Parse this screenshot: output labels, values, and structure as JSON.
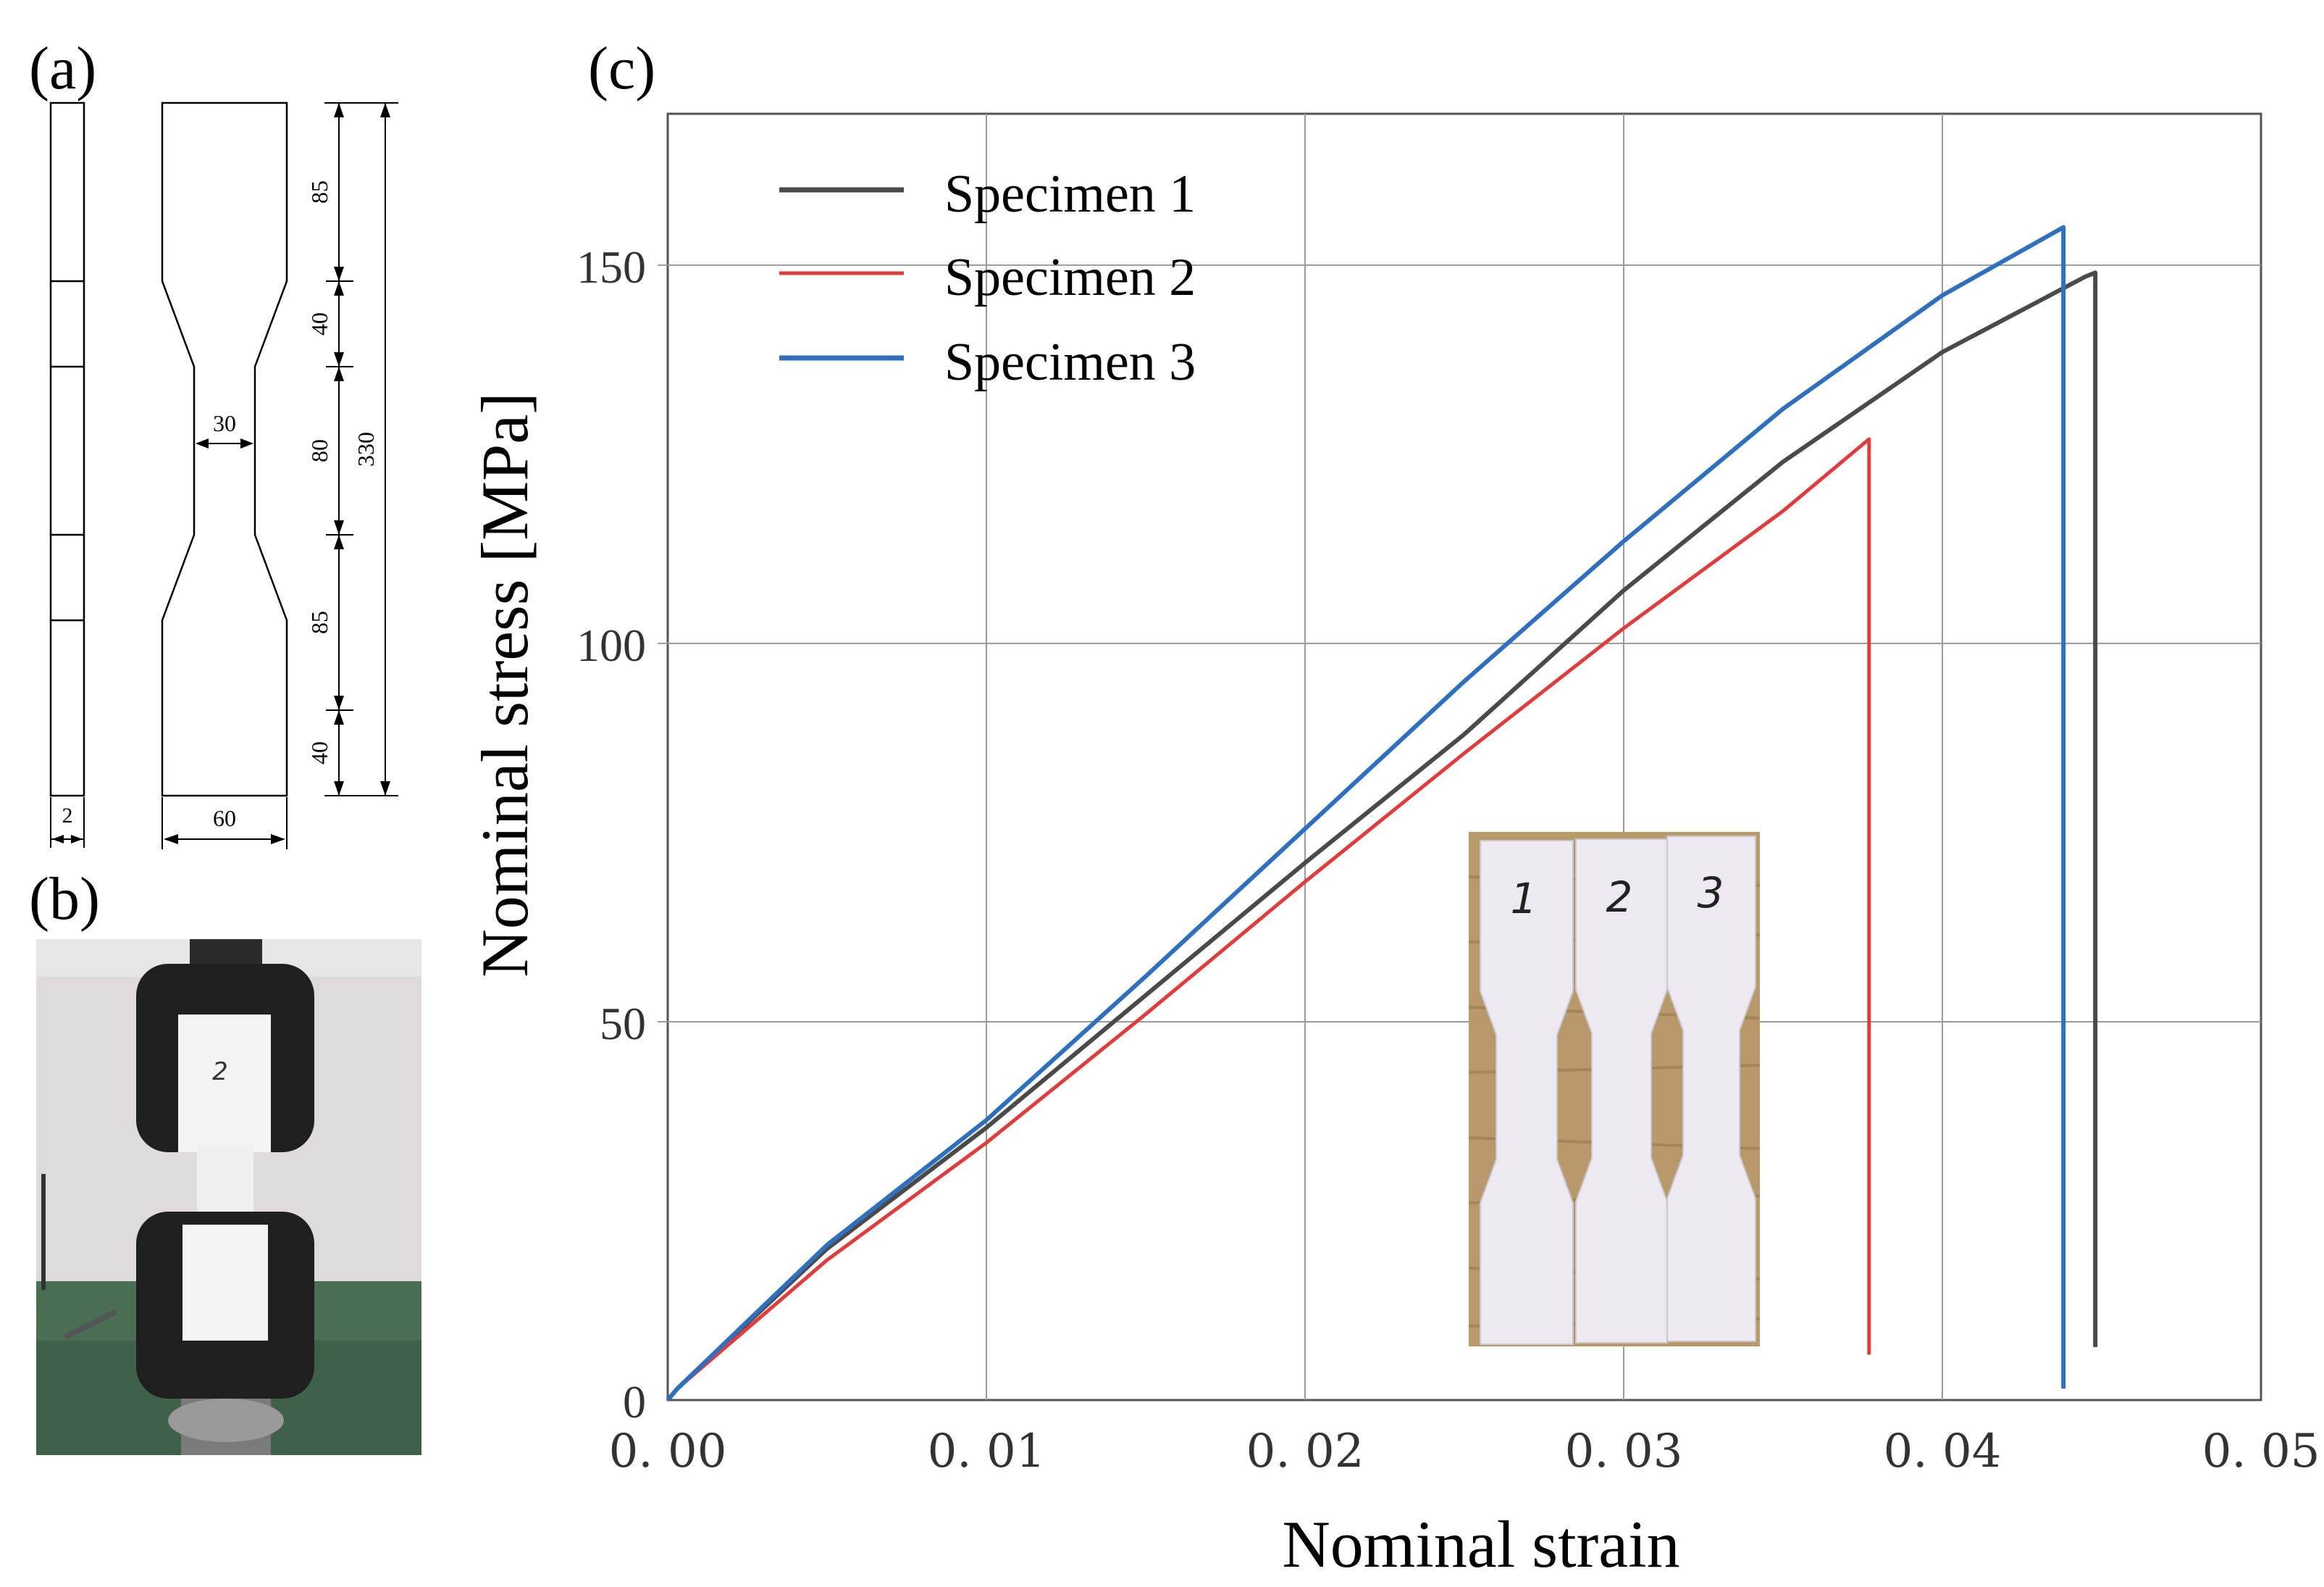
{
  "panels": {
    "a": {
      "label": "(a)",
      "dims": {
        "thickness": "2",
        "width": "60",
        "neck_width": "30",
        "seg1": "85",
        "seg2": "40",
        "seg3": "80",
        "seg4": "85",
        "seg5": "40",
        "total": "330"
      }
    },
    "b": {
      "label": "(b)",
      "photo_label": "2"
    },
    "c": {
      "label": "(c)",
      "inset_labels": [
        "1",
        "2",
        "3"
      ]
    }
  },
  "colors": {
    "specimen1": "#4a4a4a",
    "specimen2": "#e03c3c",
    "specimen3": "#2f6fc0",
    "grid": "#9a9a9a"
  },
  "chart_data": {
    "type": "line",
    "title": "",
    "xlabel": "Nominal strain",
    "ylabel": "Nominal stress [MPa]",
    "xlim": [
      0,
      0.05
    ],
    "ylim": [
      0,
      170
    ],
    "xticks": [
      0,
      0.01,
      0.02,
      0.03,
      0.04,
      0.05
    ],
    "xtick_labels": [
      "0. 00",
      "0. 01",
      "0. 02",
      "0. 03",
      "0. 04",
      "0. 05"
    ],
    "yticks": [
      0,
      50,
      100,
      150
    ],
    "ytick_labels": [
      "0",
      "50",
      "100",
      "150"
    ],
    "grid": true,
    "legend_position": "top-left",
    "series": [
      {
        "name": "Specimen 1",
        "x": [
          0,
          0.0003,
          0.005,
          0.01,
          0.015,
          0.02,
          0.025,
          0.03,
          0.035,
          0.04,
          0.0445,
          0.0448,
          0.0448
        ],
        "y": [
          0,
          1.5,
          20,
          36,
          53.5,
          71,
          88,
          107,
          124,
          138.5,
          148.5,
          149,
          7
        ]
      },
      {
        "name": "Specimen 2",
        "x": [
          0,
          0.0003,
          0.005,
          0.01,
          0.015,
          0.02,
          0.025,
          0.03,
          0.035,
          0.0377,
          0.0377
        ],
        "y": [
          0,
          1.5,
          18.5,
          34,
          51,
          68.5,
          85.5,
          102,
          117.5,
          127,
          6
        ]
      },
      {
        "name": "Specimen 3",
        "x": [
          0,
          0.0003,
          0.005,
          0.01,
          0.015,
          0.02,
          0.025,
          0.03,
          0.035,
          0.04,
          0.0438,
          0.0438
        ],
        "y": [
          0,
          1.5,
          20.5,
          37,
          56,
          75.5,
          95,
          113.5,
          131,
          146,
          155,
          1.5
        ]
      }
    ]
  }
}
